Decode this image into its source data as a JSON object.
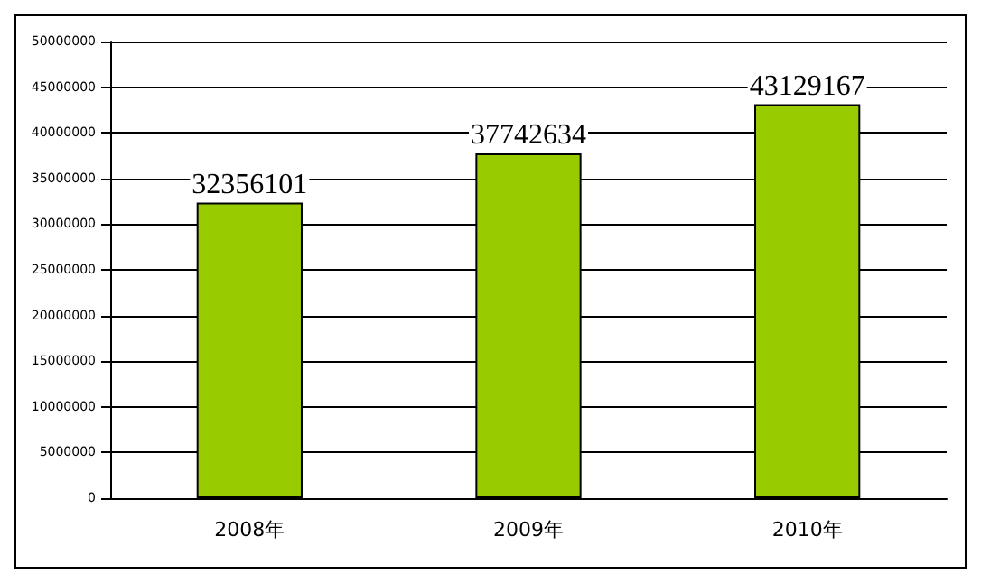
{
  "chart_data": {
    "type": "bar",
    "categories": [
      "2008年",
      "2009年",
      "2010年"
    ],
    "values": [
      32356101,
      37742634,
      43129167
    ],
    "color": "#99cc00",
    "ylim": [
      0,
      50000000
    ],
    "yticks": [
      0,
      5000000,
      10000000,
      15000000,
      20000000,
      25000000,
      30000000,
      35000000,
      40000000,
      45000000,
      50000000
    ],
    "grid": "y",
    "data_labels": true
  }
}
